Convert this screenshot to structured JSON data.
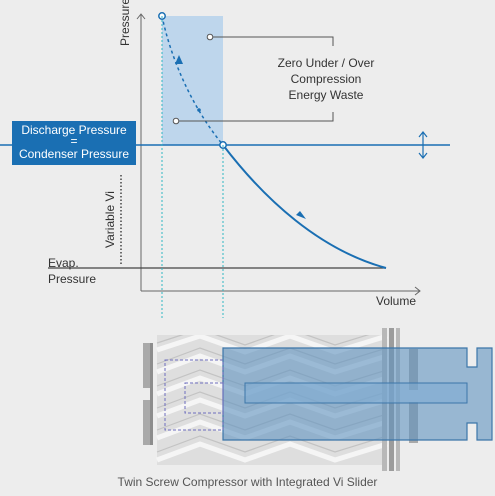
{
  "diagram": {
    "axis_y": "Pressure",
    "axis_x": "Volume",
    "variable_vi": "Variable Vi",
    "evap_line1": "Evap.",
    "evap_line2": "Pressure",
    "discharge": {
      "top": "Discharge Pressure",
      "equals": "=",
      "bottom": "Condenser Pressure"
    },
    "waste": {
      "line1": "Zero Under / Over",
      "line2": "Compression",
      "line3": "Energy Waste"
    },
    "caption": "Twin Screw Compressor with Integrated Vi Slider"
  },
  "colors": {
    "accent": "#1a6fb3",
    "highlight": "#c5dcef",
    "slider": "#6a9cc4",
    "screw": "#dcdcdc",
    "background": "#ededed"
  }
}
